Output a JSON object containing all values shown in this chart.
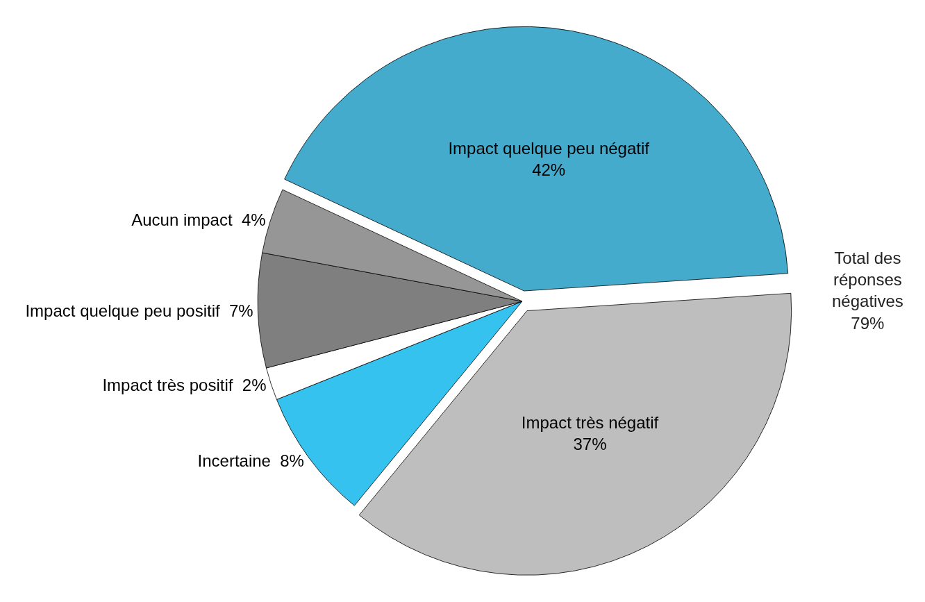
{
  "chart_data": {
    "type": "pie",
    "categories": [
      "Impact quelque peu négatif",
      "Impact très négatif",
      "Incertaine",
      "Impact très positif",
      "Impact quelque peu positif",
      "Aucun impact"
    ],
    "values": [
      42,
      37,
      8,
      2,
      7,
      4
    ],
    "value_labels": [
      "42%",
      "37%",
      "8%",
      "2%",
      "7%",
      "4%"
    ],
    "colors": [
      "#45abcc",
      "#bebebe",
      "#35c2ee",
      "#ffffff",
      "#7f7f7f",
      "#969696"
    ],
    "annotations": [
      "Total des\nréponses\nnégatives\n79%"
    ],
    "legend": false
  }
}
